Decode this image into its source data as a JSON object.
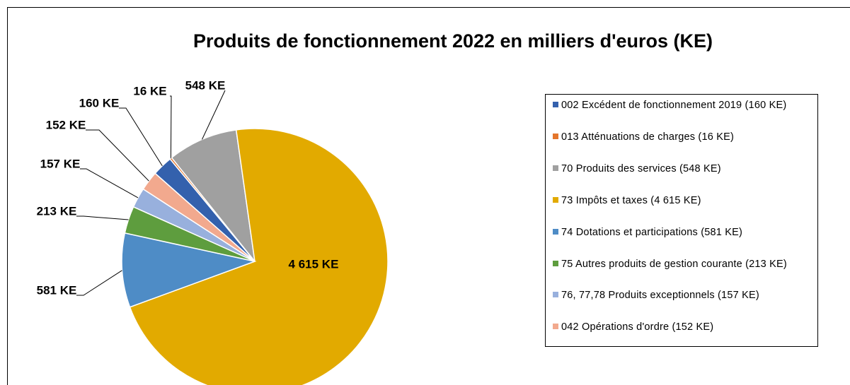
{
  "chart_data": {
    "type": "pie",
    "title": "Produits de fonctionnement 2022 en milliers  d'euros (KE)",
    "series": [
      {
        "names": [
          "002 Excédent de fonctionnement 2019 (160 KE)",
          "013 Atténuations de charges (16 KE)",
          "70 Produits des services (548 KE)",
          "73 Impôts et taxes (4 615 KE)",
          "74 Dotations et participations (581 KE)",
          "75 Autres produits de gestion courante (213 KE)",
          "76, 77,78 Produits exceptionnels (157 KE)",
          "042 Opérations d'ordre (152 KE)"
        ],
        "colors": [
          "#3461ad",
          "#e4762c",
          "#a0a0a0",
          "#e2aa00",
          "#4e8cc6",
          "#5e9d3e",
          "#98b0dd",
          "#f2a98e"
        ],
        "values": [
          160,
          16,
          548,
          4615,
          581,
          213,
          157,
          152
        ],
        "value_labels": [
          "160 KE",
          "16 KE",
          "548 KE",
          "4 615 KE",
          "581 KE",
          "213 KE",
          "157 KE",
          "152 KE"
        ]
      }
    ],
    "legend": "right"
  }
}
